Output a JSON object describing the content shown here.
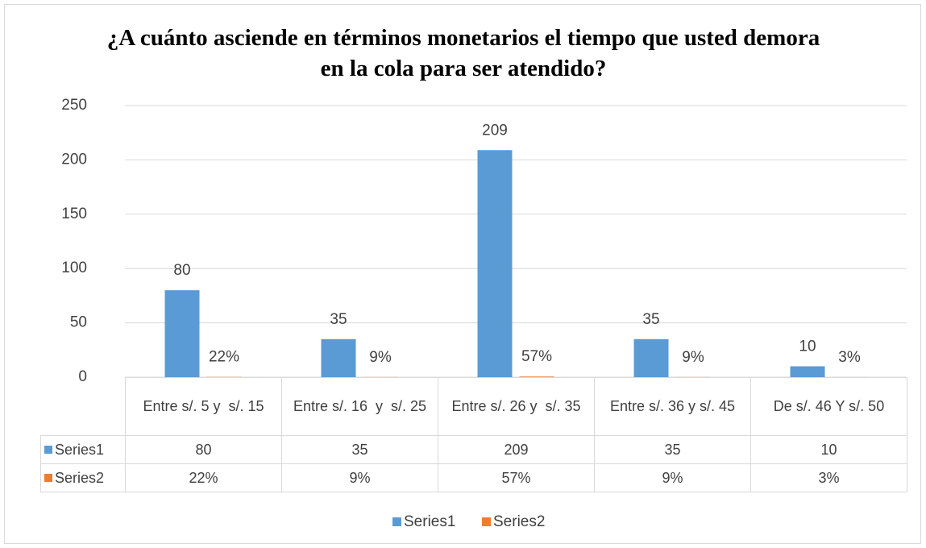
{
  "chart_data": {
    "type": "bar",
    "title": "¿A cuánto asciende en términos monetarios el tiempo que usted demora  en la cola para ser atendido?",
    "categories": [
      "Entre s/. 5 y  s/. 15",
      "Entre s/. 16  y  s/. 25",
      "Entre s/. 26 y  s/. 35",
      "Entre s/. 36 y s/. 45",
      "De s/. 46 Y s/. 50"
    ],
    "series": [
      {
        "name": "Series1",
        "color": "#5b9bd5",
        "values": [
          80,
          35,
          209,
          35,
          10
        ]
      },
      {
        "name": "Series2",
        "color": "#ed7d31",
        "values": [
          0.22,
          0.09,
          0.57,
          0.09,
          0.03
        ],
        "value_labels": [
          "22%",
          "9%",
          "57%",
          "9%",
          "3%"
        ]
      }
    ],
    "ylim": [
      0,
      250
    ],
    "yticks": [
      0,
      50,
      100,
      150,
      200,
      250
    ],
    "grid": true,
    "legend": "bottom"
  }
}
